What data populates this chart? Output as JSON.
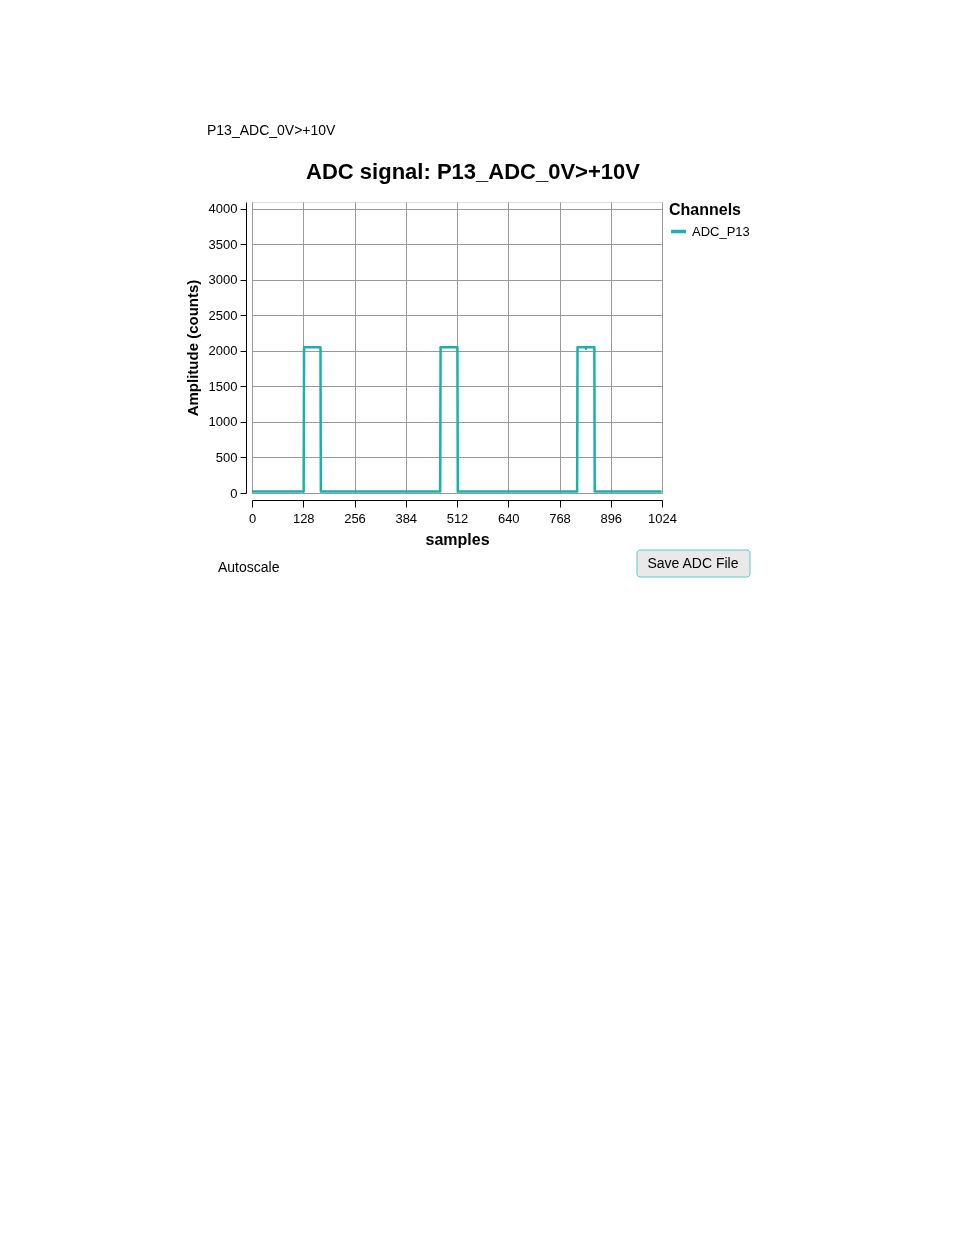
{
  "chart_data": {
    "type": "line",
    "title": "ADC signal: P13_ADC_0V>+10V",
    "xlabel": "samples",
    "ylabel": "Amplitude (counts)",
    "legend_title": "Channels",
    "legend": "top right",
    "grid": true,
    "series": [
      {
        "name": "ADC_P13",
        "color": "#17b3ab",
        "x": [
          0,
          129,
          130,
          171,
          172,
          470,
          471,
          513,
          514,
          812,
          813,
          833,
          834,
          835,
          855,
          856,
          1023
        ],
        "values": [
          20,
          20,
          2050,
          2050,
          20,
          20,
          2050,
          2050,
          20,
          20,
          2050,
          2050,
          2030,
          2050,
          2050,
          20,
          20
        ]
      }
    ],
    "xlim": [
      0,
      1024
    ],
    "xticks": [
      0,
      128,
      256,
      384,
      512,
      640,
      768,
      896,
      1024
    ],
    "ylim": [
      0,
      4096
    ],
    "yticks": [
      0,
      500,
      1000,
      1500,
      2000,
      2500,
      3000,
      3500,
      4000
    ],
    "annotations": [
      "P13_ADC_0V>+10V",
      "Autoscale",
      "Save ADC File"
    ]
  }
}
